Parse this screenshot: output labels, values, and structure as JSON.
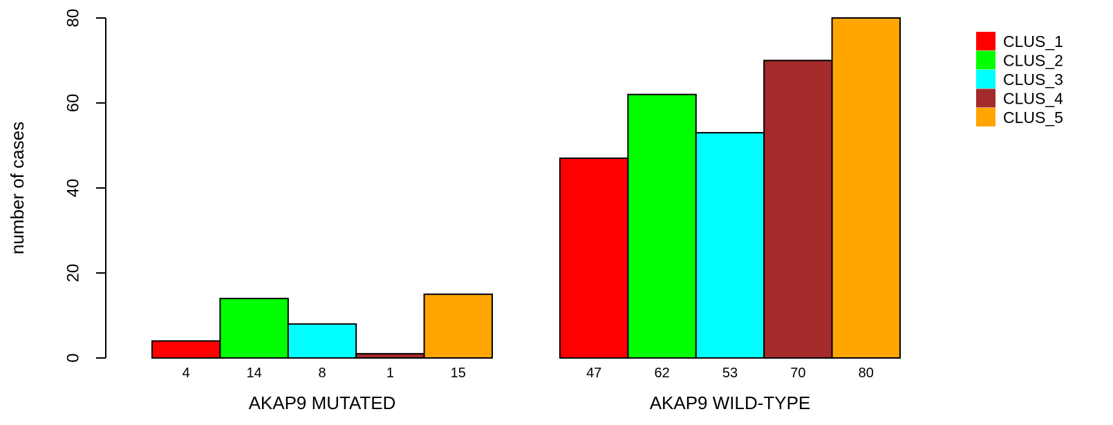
{
  "chart_data": {
    "type": "bar",
    "title": "",
    "ylabel": "number of cases",
    "xlabel": "",
    "ylim": [
      0,
      80
    ],
    "yticks": [
      0,
      20,
      40,
      60,
      80
    ],
    "grid": false,
    "legend_position": "top-right",
    "groups": [
      {
        "label": "AKAP9 MUTATED",
        "values": [
          4,
          14,
          8,
          1,
          15
        ],
        "value_labels": [
          "4",
          "14",
          "8",
          "1",
          "15"
        ]
      },
      {
        "label": "AKAP9 WILD-TYPE",
        "values": [
          47,
          62,
          53,
          70,
          80
        ],
        "value_labels": [
          "47",
          "62",
          "53",
          "70",
          "80"
        ]
      }
    ],
    "series": [
      {
        "name": "CLUS_1",
        "color": "#ff0000"
      },
      {
        "name": "CLUS_2",
        "color": "#00ff00"
      },
      {
        "name": "CLUS_3",
        "color": "#00ffff"
      },
      {
        "name": "CLUS_4",
        "color": "#a52a2a"
      },
      {
        "name": "CLUS_5",
        "color": "#ffa500"
      }
    ]
  }
}
